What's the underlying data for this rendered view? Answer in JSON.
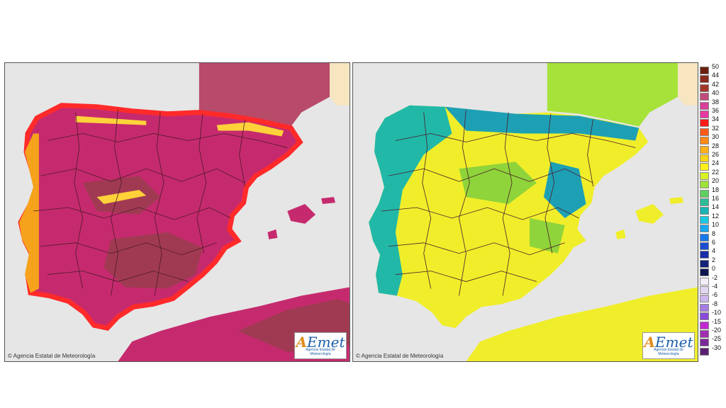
{
  "maps": [
    {
      "id": "left",
      "credit": "© Agencia Estatal de Meteorología",
      "logo": {
        "main": "AEmet",
        "sub": "Agencia Estatal de Meteorología"
      },
      "colors": {
        "land": "#c62a6e",
        "hot": "#a03a52",
        "coast": "#ff2a2a",
        "warm": "#f6a21c",
        "mountain": "#ffd23a",
        "france": "#b84a6a"
      }
    },
    {
      "id": "right",
      "credit": "© Agencia Estatal de Meteorología",
      "logo": {
        "main": "AEmet",
        "sub": "Agencia Estatal de Meteorología"
      },
      "colors": {
        "land": "#f0ee2a",
        "hot": "#d8e02a",
        "coast": "#22b8a8",
        "warm": "#8fd43a",
        "mountain": "#1ea0b4",
        "france": "#a6e23a"
      }
    }
  ],
  "legend": [
    {
      "label": "50",
      "color": "#6b1f0f"
    },
    {
      "label": "44",
      "color": "#8a2a1c"
    },
    {
      "label": "42",
      "color": "#a3382a"
    },
    {
      "label": "40",
      "color": "#c04a7a"
    },
    {
      "label": "38",
      "color": "#d8409a"
    },
    {
      "label": "36",
      "color": "#e83aa0"
    },
    {
      "label": "34",
      "color": "#ff1a1a"
    },
    {
      "label": "32",
      "color": "#ff5a1a"
    },
    {
      "label": "30",
      "color": "#ff8a1a"
    },
    {
      "label": "28",
      "color": "#ffb01a"
    },
    {
      "label": "26",
      "color": "#ffd21a"
    },
    {
      "label": "24",
      "color": "#fff01a"
    },
    {
      "label": "22",
      "color": "#d6f028"
    },
    {
      "label": "20",
      "color": "#9ee23a"
    },
    {
      "label": "18",
      "color": "#5ed060"
    },
    {
      "label": "16",
      "color": "#2ebc98"
    },
    {
      "label": "14",
      "color": "#1ab4b4"
    },
    {
      "label": "12",
      "color": "#1ac8e0"
    },
    {
      "label": "10",
      "color": "#1aa8f0"
    },
    {
      "label": "8",
      "color": "#1a78e8"
    },
    {
      "label": "6",
      "color": "#1a4ed0"
    },
    {
      "label": "4",
      "color": "#1a2ea8"
    },
    {
      "label": "2",
      "color": "#14207a"
    },
    {
      "label": "0",
      "color": "#0e1650"
    },
    {
      "label": "-2",
      "color": "#f4eef8"
    },
    {
      "label": "-4",
      "color": "#e2d6f0"
    },
    {
      "label": "-6",
      "color": "#cbb6ea"
    },
    {
      "label": "-8",
      "color": "#a47ee0"
    },
    {
      "label": "-10",
      "color": "#8a4ad8"
    },
    {
      "label": "-15",
      "color": "#c02ad0"
    },
    {
      "label": "-20",
      "color": "#a030b0"
    },
    {
      "label": "-25",
      "color": "#7a2a98"
    },
    {
      "label": "-30",
      "color": "#5a2070"
    }
  ]
}
